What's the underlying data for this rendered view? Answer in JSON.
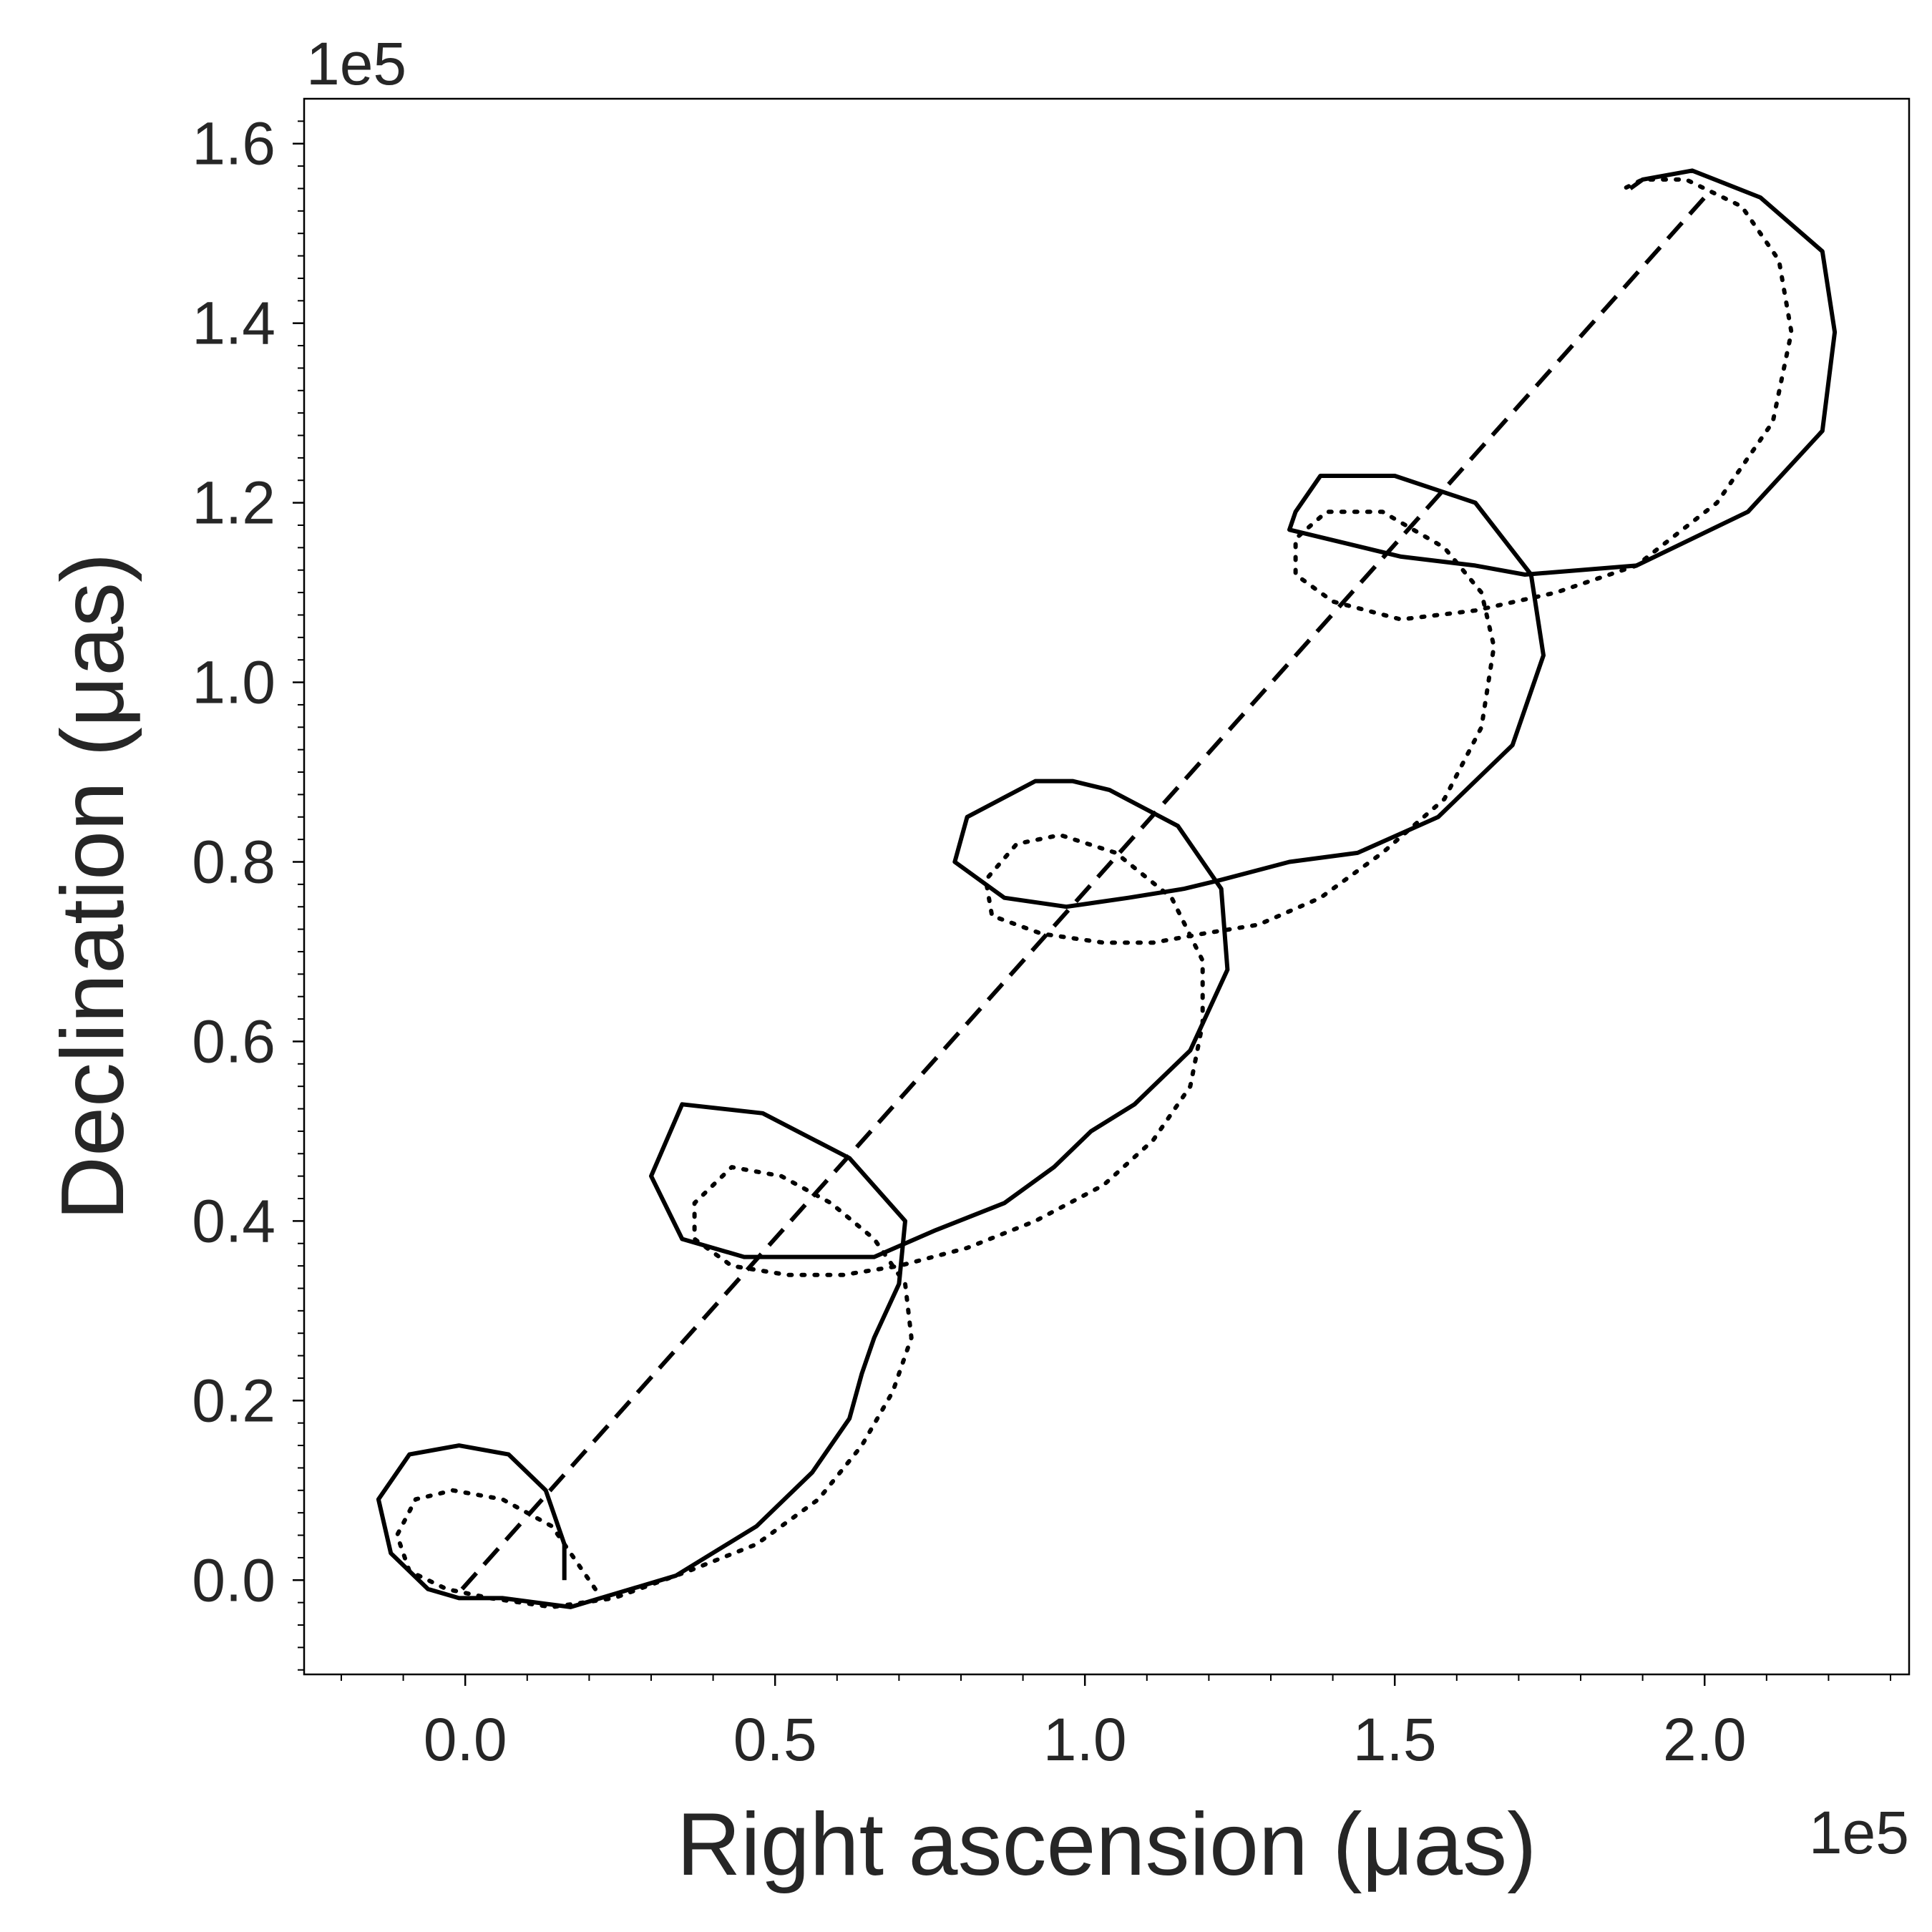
{
  "chart_data": {
    "type": "line",
    "xlabel": "Right ascension (μas)",
    "ylabel": "Declination (μas)",
    "x_offset_text": "1e5",
    "y_offset_text": "1e5",
    "xlim": [
      -0.26,
      2.33
    ],
    "ylim": [
      -0.105,
      1.65
    ],
    "xticks": [
      0.0,
      0.5,
      1.0,
      1.5,
      2.0
    ],
    "xtick_labels": [
      "0.0",
      "0.5",
      "1.0",
      "1.5",
      "2.0"
    ],
    "yticks": [
      0.0,
      0.2,
      0.4,
      0.6,
      0.8,
      1.0,
      1.2,
      1.4,
      1.6
    ],
    "ytick_labels": [
      "0.0",
      "0.2",
      "0.4",
      "0.6",
      "0.8",
      "1.0",
      "1.2",
      "1.4",
      "1.6"
    ],
    "grid": false,
    "legend": "none",
    "colors": {
      "line": "#000000",
      "text": "#262626"
    },
    "series": [
      {
        "style": "solid",
        "x": [
          0.16,
          0.16,
          0.13,
          0.07,
          -0.01,
          -0.09,
          -0.14,
          -0.12,
          -0.06,
          -0.01,
          0.06,
          0.17,
          0.34,
          0.47,
          0.56,
          0.62,
          0.64,
          0.66,
          0.7,
          0.71,
          0.62,
          0.48,
          0.35,
          0.3,
          0.35,
          0.45,
          0.56,
          0.66,
          0.76,
          0.87,
          0.95,
          1.01,
          1.08,
          1.17,
          1.23,
          1.22,
          1.15,
          1.04,
          0.98,
          0.92,
          0.81,
          0.79,
          0.87,
          0.97,
          1.07,
          1.16,
          1.22,
          1.33,
          1.44,
          1.57,
          1.69,
          1.74,
          1.72,
          1.63,
          1.5,
          1.38,
          1.34,
          1.33,
          1.39,
          1.51,
          1.63,
          1.71,
          1.89,
          2.07,
          2.19,
          2.21,
          2.19,
          2.09,
          1.98,
          1.9,
          1.88
        ],
        "y": [
          0.0,
          0.04,
          0.1,
          0.14,
          0.15,
          0.14,
          0.09,
          0.03,
          -0.01,
          -0.02,
          -0.02,
          -0.03,
          0.005,
          0.06,
          0.12,
          0.18,
          0.23,
          0.27,
          0.33,
          0.4,
          0.47,
          0.52,
          0.53,
          0.45,
          0.38,
          0.36,
          0.36,
          0.36,
          0.39,
          0.42,
          0.46,
          0.5,
          0.53,
          0.59,
          0.68,
          0.77,
          0.84,
          0.88,
          0.89,
          0.89,
          0.85,
          0.8,
          0.76,
          0.75,
          0.76,
          0.77,
          0.78,
          0.8,
          0.81,
          0.85,
          0.93,
          1.03,
          1.12,
          1.2,
          1.23,
          1.23,
          1.19,
          1.17,
          1.16,
          1.14,
          1.13,
          1.12,
          1.13,
          1.19,
          1.28,
          1.39,
          1.48,
          1.54,
          1.57,
          1.56,
          1.55
        ]
      },
      {
        "style": "dotted",
        "x": [
          0.21,
          0.18,
          0.14,
          0.06,
          -0.02,
          -0.08,
          -0.11,
          -0.09,
          -0.03,
          0.04,
          0.14,
          0.24,
          0.36,
          0.47,
          0.57,
          0.64,
          0.69,
          0.72,
          0.71,
          0.66,
          0.59,
          0.51,
          0.43,
          0.37,
          0.37,
          0.43,
          0.52,
          0.61,
          0.7,
          0.81,
          0.92,
          1.03,
          1.11,
          1.17,
          1.19,
          1.19,
          1.14,
          1.05,
          0.96,
          0.89,
          0.84,
          0.85,
          0.93,
          1.03,
          1.11,
          1.19,
          1.28,
          1.38,
          1.48,
          1.58,
          1.64,
          1.66,
          1.64,
          1.58,
          1.48,
          1.39,
          1.34,
          1.34,
          1.4,
          1.51,
          1.63,
          1.76,
          1.89,
          2.02,
          2.11,
          2.14,
          2.12,
          2.06,
          1.97,
          1.9,
          1.87
        ],
        "y": [
          -0.01,
          0.02,
          0.06,
          0.09,
          0.1,
          0.09,
          0.05,
          0.01,
          -0.01,
          -0.02,
          -0.03,
          -0.02,
          0.01,
          0.04,
          0.09,
          0.15,
          0.21,
          0.27,
          0.33,
          0.38,
          0.42,
          0.45,
          0.46,
          0.42,
          0.38,
          0.35,
          0.34,
          0.34,
          0.35,
          0.37,
          0.4,
          0.44,
          0.49,
          0.55,
          0.62,
          0.69,
          0.76,
          0.81,
          0.83,
          0.82,
          0.78,
          0.74,
          0.72,
          0.71,
          0.71,
          0.72,
          0.73,
          0.76,
          0.81,
          0.87,
          0.95,
          1.04,
          1.1,
          1.15,
          1.19,
          1.19,
          1.16,
          1.12,
          1.09,
          1.07,
          1.08,
          1.1,
          1.13,
          1.2,
          1.29,
          1.39,
          1.47,
          1.53,
          1.56,
          1.56,
          1.55
        ]
      },
      {
        "style": "dashed",
        "x": [
          -0.005,
          2.0
        ],
        "y": [
          -0.01,
          1.54
        ]
      }
    ]
  }
}
